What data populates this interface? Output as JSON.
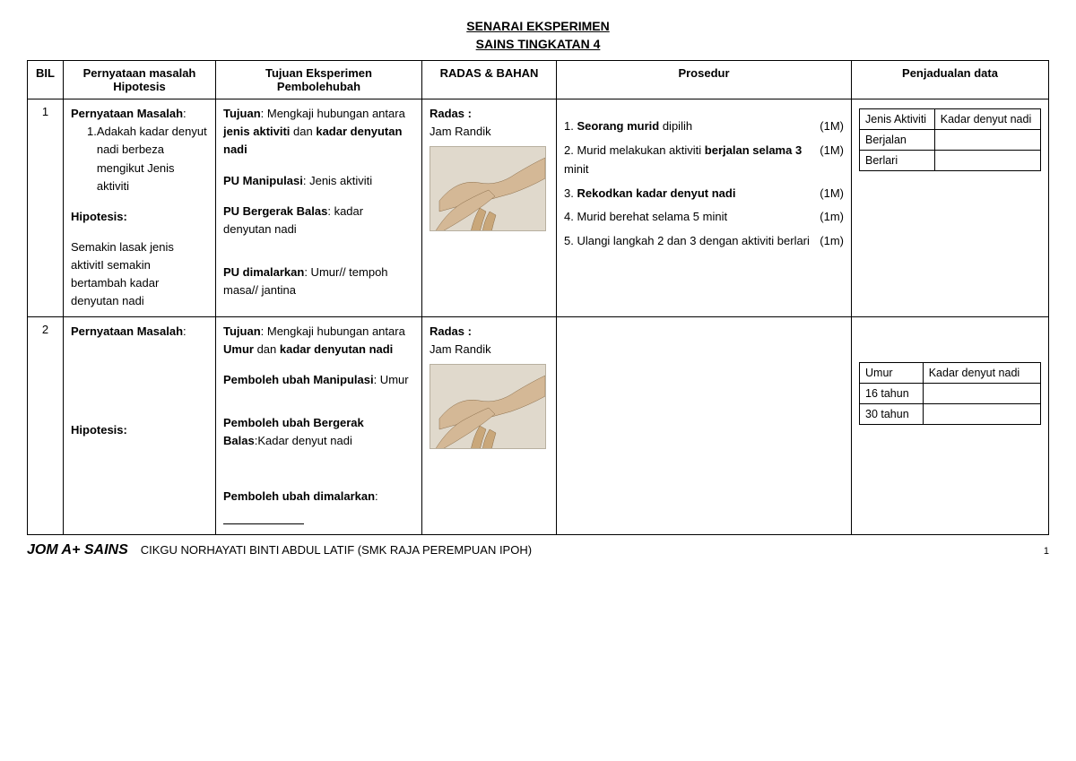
{
  "title": {
    "line1": "SENARAI EKSPERIMEN",
    "line2": "SAINS TINGKATAN 4"
  },
  "headers": {
    "bil": "BIL",
    "hipotesis": "Pernyataan masalah Hipotesis",
    "tujuan": "Tujuan Eksperimen Pembolehubah",
    "radas": "RADAS & BAHAN",
    "prosedur": "Prosedur",
    "penjadualan": "Penjadualan data"
  },
  "rows": [
    {
      "bil": "1",
      "hip": {
        "pm_label": "Pernyataan Masalah",
        "pm_item_no": "1.",
        "pm_item": "Adakah kadar denyut nadi  berbeza mengikut Jenis aktiviti",
        "hip_label": "Hipotesis:",
        "hip_text": "Semakin lasak jenis aktivitI semakin bertambah kadar denyutan nadi"
      },
      "tuj": {
        "tujuan_label": "Tujuan",
        "tujuan_text_a": ": Mengkaji hubungan antara ",
        "tujuan_bold1": "jenis aktiviti",
        "tujuan_text_b": "  dan ",
        "tujuan_bold2": "kadar denyutan nadi",
        "pu_m_label": "PU Manipulasi",
        "pu_m_text": ": Jenis aktiviti",
        "pu_b_label": "PU Bergerak Balas",
        "pu_b_text": ": kadar denyutan nadi",
        "pu_d_label": "PU dimalarkan",
        "pu_d_text": ": Umur// tempoh masa// jantina"
      },
      "rad": {
        "radas_label": "Radas :",
        "radas_item": "Jam Randik"
      },
      "pro": {
        "lines": [
          {
            "pre": "1. ",
            "bold": "Seorang murid",
            "post": " dipilih",
            "mark": "(1M)"
          },
          {
            "pre": "2. Murid melakukan aktiviti ",
            "bold": "berjalan selama 3",
            "post": " minit",
            "mark": "(1M)"
          },
          {
            "pre": "3. ",
            "bold": "Rekodkan kadar denyut nadi",
            "post": "",
            "mark": "(1M)"
          },
          {
            "pre": "4. Murid berehat selama 5 minit",
            "bold": "",
            "post": "",
            "mark": "(1m)"
          },
          {
            "pre": "5. Ulangi langkah 2 dan 3 dengan aktiviti berlari",
            "bold": "",
            "post": "",
            "mark": "(1m)"
          }
        ]
      },
      "pen": {
        "col1": "Jenis Aktiviti",
        "col2": "Kadar denyut nadi",
        "r1": "Berjalan",
        "r2": "Berlari"
      }
    },
    {
      "bil": "2",
      "hip": {
        "pm_label": "Pernyataan Masalah",
        "hip_label": "Hipotesis:"
      },
      "tuj": {
        "tujuan_label": "Tujuan",
        "tujuan_text_a": ": Mengkaji hubungan antara ",
        "tujuan_bold1": "Umur",
        "tujuan_text_b": " dan ",
        "tujuan_bold2": "kadar denyutan nadi",
        "pu_m_label": "Pemboleh ubah Manipulasi",
        "pu_m_text": ": Umur",
        "pu_b_label": "Pemboleh ubah Bergerak Balas",
        "pu_b_text": ":Kadar denyut nadi",
        "pu_d_label": "Pemboleh ubah dimalarkan",
        "pu_d_text": ":"
      },
      "rad": {
        "radas_label": "Radas :",
        "radas_item": "Jam Randik"
      },
      "pen": {
        "col1": "Umur",
        "col2": "Kadar denyut nadi",
        "r1": "16 tahun",
        "r2": "30 tahun"
      }
    }
  ],
  "footer": {
    "brand": "JOM A+ SAINS",
    "author": "CIKGU NORHAYATI BINTI ABDUL LATIF (SMK RAJA PEREMPUAN IPOH)",
    "page": "1"
  },
  "colors": {
    "text": "#000000",
    "bg": "#ffffff",
    "img_bg": "#e0d9cc"
  }
}
